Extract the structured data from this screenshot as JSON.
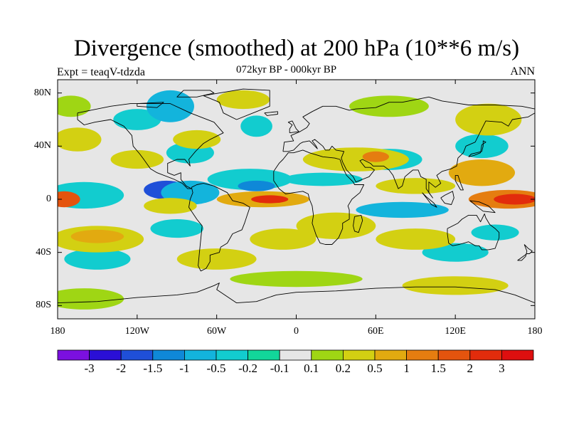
{
  "title": "Divergence (smoothed) at 200 hPa (10**6 m/s)",
  "left_label": "Expt = teaqV-tdzda",
  "center_label": "072kyr BP - 000kyr BP",
  "right_label": "ANN",
  "map": {
    "projection": "cylindrical-equidistant",
    "lon_range": [
      -180,
      180
    ],
    "lat_range": [
      -90,
      90
    ],
    "x_ticks": [
      "180",
      "120W",
      "60W",
      "0",
      "60E",
      "120E",
      "180"
    ],
    "y_ticks": [
      "80N",
      "40N",
      "0",
      "40S",
      "80S"
    ],
    "y_tick_values": [
      80,
      40,
      0,
      -40,
      -80
    ]
  },
  "colorbar": {
    "labels": [
      "-3",
      "-2",
      "-1.5",
      "-1",
      "-0.5",
      "-0.2",
      "-0.1",
      "0.1",
      "0.2",
      "0.5",
      "1",
      "1.5",
      "2",
      "3"
    ],
    "colors": [
      "#7b10e0",
      "#2a0fd6",
      "#1f4fd8",
      "#0f88d8",
      "#13b4dc",
      "#12cccf",
      "#12d69a",
      "#e6e6e6",
      "#9fd614",
      "#d3d012",
      "#e2aa10",
      "#e57d10",
      "#e4540e",
      "#e22c0c",
      "#de0f0f"
    ]
  },
  "features": [
    {
      "lon": -95,
      "lat": 7,
      "rx": 11,
      "ry": 4,
      "level": 0
    },
    {
      "lon": -98,
      "lat": 7,
      "rx": 17,
      "ry": 7,
      "level": 2
    },
    {
      "lon": -80,
      "lat": 5,
      "rx": 22,
      "ry": 9,
      "level": 4
    },
    {
      "lon": -160,
      "lat": 3,
      "rx": 30,
      "ry": 10,
      "level": 5
    },
    {
      "lon": -35,
      "lat": 15,
      "rx": 32,
      "ry": 8,
      "level": 5
    },
    {
      "lon": -30,
      "lat": 10,
      "rx": 14,
      "ry": 4,
      "level": 3
    },
    {
      "lon": 80,
      "lat": -8,
      "rx": 35,
      "ry": 6,
      "level": 4
    },
    {
      "lon": 20,
      "lat": 15,
      "rx": 30,
      "ry": 5,
      "level": 5
    },
    {
      "lon": -150,
      "lat": -45,
      "rx": 25,
      "ry": 8,
      "level": 5
    },
    {
      "lon": -80,
      "lat": 35,
      "rx": 18,
      "ry": 8,
      "level": 5
    },
    {
      "lon": -120,
      "lat": 60,
      "rx": 18,
      "ry": 8,
      "level": 5
    },
    {
      "lon": -95,
      "lat": 70,
      "rx": 18,
      "ry": 12,
      "level": 4
    },
    {
      "lon": -30,
      "lat": 55,
      "rx": 12,
      "ry": 8,
      "level": 5
    },
    {
      "lon": 70,
      "lat": 30,
      "rx": 25,
      "ry": 8,
      "level": 5
    },
    {
      "lon": -90,
      "lat": -22,
      "rx": 20,
      "ry": 7,
      "level": 5
    },
    {
      "lon": 140,
      "lat": 40,
      "rx": 20,
      "ry": 9,
      "level": 5
    },
    {
      "lon": 150,
      "lat": -25,
      "rx": 18,
      "ry": 6,
      "level": 5
    },
    {
      "lon": 120,
      "lat": -40,
      "rx": 25,
      "ry": 7,
      "level": 5
    },
    {
      "lon": -165,
      "lat": 45,
      "rx": 18,
      "ry": 9,
      "level": 9
    },
    {
      "lon": -150,
      "lat": -30,
      "rx": 35,
      "ry": 10,
      "level": 9
    },
    {
      "lon": -150,
      "lat": -28,
      "rx": 20,
      "ry": 5,
      "level": 10
    },
    {
      "lon": -120,
      "lat": 30,
      "rx": 20,
      "ry": 7,
      "level": 9
    },
    {
      "lon": -75,
      "lat": 45,
      "rx": 18,
      "ry": 7,
      "level": 9
    },
    {
      "lon": -95,
      "lat": -5,
      "rx": 20,
      "ry": 6,
      "level": 9
    },
    {
      "lon": -25,
      "lat": 0,
      "rx": 35,
      "ry": 6,
      "level": 10
    },
    {
      "lon": -20,
      "lat": 0,
      "rx": 14,
      "ry": 3,
      "level": 13
    },
    {
      "lon": -175,
      "lat": 0,
      "rx": 12,
      "ry": 6,
      "level": 12
    },
    {
      "lon": 160,
      "lat": 0,
      "rx": 30,
      "ry": 7,
      "level": 11
    },
    {
      "lon": 165,
      "lat": 0,
      "rx": 16,
      "ry": 4,
      "level": 13
    },
    {
      "lon": 45,
      "lat": 30,
      "rx": 40,
      "ry": 9,
      "level": 9
    },
    {
      "lon": 60,
      "lat": 32,
      "rx": 10,
      "ry": 4,
      "level": 11
    },
    {
      "lon": 90,
      "lat": 10,
      "rx": 30,
      "ry": 6,
      "level": 9
    },
    {
      "lon": 140,
      "lat": 20,
      "rx": 25,
      "ry": 10,
      "level": 10
    },
    {
      "lon": 145,
      "lat": 60,
      "rx": 25,
      "ry": 12,
      "level": 9
    },
    {
      "lon": 70,
      "lat": 70,
      "rx": 30,
      "ry": 8,
      "level": 8
    },
    {
      "lon": 30,
      "lat": -20,
      "rx": 30,
      "ry": 10,
      "level": 9
    },
    {
      "lon": -10,
      "lat": -30,
      "rx": 25,
      "ry": 8,
      "level": 9
    },
    {
      "lon": 90,
      "lat": -30,
      "rx": 30,
      "ry": 8,
      "level": 9
    },
    {
      "lon": -60,
      "lat": -45,
      "rx": 30,
      "ry": 8,
      "level": 9
    },
    {
      "lon": 0,
      "lat": -60,
      "rx": 50,
      "ry": 6,
      "level": 8
    },
    {
      "lon": 120,
      "lat": -65,
      "rx": 40,
      "ry": 7,
      "level": 9
    },
    {
      "lon": -160,
      "lat": -75,
      "rx": 30,
      "ry": 8,
      "level": 8
    },
    {
      "lon": -40,
      "lat": 75,
      "rx": 20,
      "ry": 7,
      "level": 9
    },
    {
      "lon": -170,
      "lat": 70,
      "rx": 15,
      "ry": 8,
      "level": 8
    }
  ],
  "coastlines": [
    [
      [
        -165,
        65
      ],
      [
        -140,
        70
      ],
      [
        -125,
        72
      ],
      [
        -95,
        72
      ],
      [
        -80,
        65
      ],
      [
        -62,
        58
      ],
      [
        -55,
        50
      ],
      [
        -65,
        45
      ],
      [
        -70,
        42
      ],
      [
        -76,
        36
      ],
      [
        -81,
        30
      ],
      [
        -80,
        25
      ],
      [
        -84,
        30
      ],
      [
        -90,
        30
      ],
      [
        -97,
        27
      ],
      [
        -97,
        20
      ],
      [
        -92,
        18
      ],
      [
        -87,
        20
      ],
      [
        -87,
        15
      ],
      [
        -83,
        10
      ],
      [
        -79,
        8
      ],
      [
        -82,
        8
      ],
      [
        -86,
        12
      ],
      [
        -92,
        15
      ],
      [
        -105,
        20
      ],
      [
        -110,
        23
      ],
      [
        -115,
        30
      ],
      [
        -118,
        34
      ],
      [
        -123,
        40
      ],
      [
        -124,
        48
      ],
      [
        -130,
        55
      ],
      [
        -140,
        60
      ],
      [
        -152,
        58
      ],
      [
        -160,
        56
      ],
      [
        -165,
        60
      ],
      [
        -165,
        65
      ]
    ],
    [
      [
        -79,
        9
      ],
      [
        -75,
        11
      ],
      [
        -70,
        12
      ],
      [
        -62,
        10
      ],
      [
        -52,
        5
      ],
      [
        -48,
        -1
      ],
      [
        -40,
        -3
      ],
      [
        -35,
        -6
      ],
      [
        -37,
        -12
      ],
      [
        -39,
        -18
      ],
      [
        -41,
        -23
      ],
      [
        -48,
        -26
      ],
      [
        -52,
        -33
      ],
      [
        -57,
        -36
      ],
      [
        -58,
        -40
      ],
      [
        -65,
        -42
      ],
      [
        -65,
        -47
      ],
      [
        -68,
        -52
      ],
      [
        -72,
        -54
      ],
      [
        -74,
        -50
      ],
      [
        -73,
        -40
      ],
      [
        -72,
        -30
      ],
      [
        -71,
        -20
      ],
      [
        -75,
        -15
      ],
      [
        -81,
        -6
      ],
      [
        -80,
        0
      ],
      [
        -78,
        5
      ],
      [
        -79,
        9
      ]
    ],
    [
      [
        -45,
        60
      ],
      [
        -55,
        65
      ],
      [
        -58,
        73
      ],
      [
        -70,
        78
      ],
      [
        -40,
        83
      ],
      [
        -20,
        82
      ],
      [
        -20,
        70
      ],
      [
        -30,
        66
      ],
      [
        -45,
        60
      ]
    ],
    [
      [
        -10,
        36
      ],
      [
        -9,
        43
      ],
      [
        -2,
        44
      ],
      [
        -4,
        48
      ],
      [
        3,
        51
      ],
      [
        8,
        54
      ],
      [
        10,
        57
      ],
      [
        5,
        62
      ],
      [
        12,
        66
      ],
      [
        20,
        70
      ],
      [
        30,
        70
      ],
      [
        40,
        67
      ],
      [
        45,
        68
      ],
      [
        60,
        69
      ],
      [
        70,
        73
      ],
      [
        80,
        73
      ],
      [
        100,
        77
      ],
      [
        110,
        74
      ],
      [
        130,
        71
      ],
      [
        150,
        71
      ],
      [
        170,
        70
      ],
      [
        180,
        68
      ],
      [
        180,
        65
      ],
      [
        175,
        62
      ],
      [
        163,
        60
      ],
      [
        160,
        55
      ],
      [
        155,
        58
      ],
      [
        143,
        59
      ],
      [
        140,
        53
      ],
      [
        135,
        43
      ],
      [
        128,
        40
      ],
      [
        126,
        35
      ],
      [
        122,
        31
      ],
      [
        121,
        25
      ],
      [
        117,
        23
      ],
      [
        110,
        21
      ],
      [
        106,
        18
      ],
      [
        109,
        12
      ],
      [
        105,
        9
      ],
      [
        100,
        13
      ],
      [
        100,
        5
      ],
      [
        103,
        1
      ],
      [
        98,
        8
      ],
      [
        98,
        15
      ],
      [
        94,
        17
      ],
      [
        92,
        22
      ],
      [
        88,
        22
      ],
      [
        82,
        17
      ],
      [
        80,
        10
      ],
      [
        77,
        8
      ],
      [
        73,
        18
      ],
      [
        70,
        22
      ],
      [
        66,
        25
      ],
      [
        58,
        25
      ],
      [
        56,
        27
      ],
      [
        50,
        30
      ],
      [
        48,
        29
      ],
      [
        52,
        24
      ],
      [
        56,
        24
      ],
      [
        59,
        22
      ],
      [
        55,
        17
      ],
      [
        45,
        13
      ],
      [
        43,
        17
      ],
      [
        38,
        22
      ],
      [
        35,
        28
      ],
      [
        34,
        31
      ],
      [
        36,
        36
      ],
      [
        30,
        37
      ],
      [
        27,
        40
      ],
      [
        25,
        37
      ],
      [
        22,
        37
      ],
      [
        20,
        40
      ],
      [
        14,
        45
      ],
      [
        12,
        44
      ],
      [
        15,
        40
      ],
      [
        16,
        38
      ],
      [
        12,
        42
      ],
      [
        10,
        44
      ],
      [
        5,
        43
      ],
      [
        3,
        42
      ],
      [
        0,
        39
      ],
      [
        -2,
        37
      ],
      [
        -6,
        36
      ],
      [
        -10,
        36
      ]
    ],
    [
      [
        -17,
        21
      ],
      [
        -17,
        14
      ],
      [
        -13,
        8
      ],
      [
        -8,
        4
      ],
      [
        -2,
        5
      ],
      [
        5,
        6
      ],
      [
        9,
        4
      ],
      [
        10,
        0
      ],
      [
        12,
        -5
      ],
      [
        13,
        -12
      ],
      [
        12,
        -18
      ],
      [
        15,
        -27
      ],
      [
        18,
        -33
      ],
      [
        22,
        -34
      ],
      [
        27,
        -34
      ],
      [
        32,
        -29
      ],
      [
        35,
        -22
      ],
      [
        35,
        -18
      ],
      [
        40,
        -15
      ],
      [
        40,
        -8
      ],
      [
        39,
        -5
      ],
      [
        42,
        0
      ],
      [
        48,
        5
      ],
      [
        51,
        11
      ],
      [
        44,
        11
      ],
      [
        43,
        13
      ],
      [
        38,
        18
      ],
      [
        35,
        24
      ],
      [
        33,
        30
      ],
      [
        29,
        31
      ],
      [
        20,
        32
      ],
      [
        10,
        35
      ],
      [
        5,
        37
      ],
      [
        -2,
        35
      ],
      [
        -6,
        35
      ],
      [
        -10,
        30
      ],
      [
        -13,
        27
      ],
      [
        -17,
        21
      ]
    ],
    [
      [
        114,
        -22
      ],
      [
        114,
        -26
      ],
      [
        115,
        -33
      ],
      [
        118,
        -35
      ],
      [
        123,
        -34
      ],
      [
        130,
        -32
      ],
      [
        135,
        -35
      ],
      [
        138,
        -35
      ],
      [
        140,
        -38
      ],
      [
        145,
        -38
      ],
      [
        150,
        -37
      ],
      [
        153,
        -29
      ],
      [
        153,
        -25
      ],
      [
        150,
        -22
      ],
      [
        146,
        -19
      ],
      [
        143,
        -14
      ],
      [
        142,
        -11
      ],
      [
        139,
        -17
      ],
      [
        136,
        -12
      ],
      [
        130,
        -12
      ],
      [
        125,
        -15
      ],
      [
        122,
        -18
      ],
      [
        114,
        -22
      ]
    ],
    [
      [
        -180,
        -78
      ],
      [
        -150,
        -77
      ],
      [
        -120,
        -74
      ],
      [
        -90,
        -72
      ],
      [
        -75,
        -70
      ],
      [
        -62,
        -65
      ],
      [
        -58,
        -63
      ],
      [
        -60,
        -68
      ],
      [
        -45,
        -78
      ],
      [
        -30,
        -77
      ],
      [
        -15,
        -72
      ],
      [
        0,
        -70
      ],
      [
        30,
        -69
      ],
      [
        60,
        -67
      ],
      [
        90,
        -66
      ],
      [
        120,
        -66
      ],
      [
        150,
        -68
      ],
      [
        165,
        -72
      ],
      [
        180,
        -78
      ]
    ],
    [
      [
        95,
        5
      ],
      [
        98,
        2
      ],
      [
        104,
        -3
      ],
      [
        106,
        -6
      ],
      [
        102,
        -4
      ],
      [
        99,
        0
      ],
      [
        95,
        5
      ]
    ],
    [
      [
        109,
        1
      ],
      [
        112,
        3
      ],
      [
        118,
        6
      ],
      [
        119,
        1
      ],
      [
        117,
        -4
      ],
      [
        112,
        -3
      ],
      [
        109,
        1
      ]
    ],
    [
      [
        131,
        -1
      ],
      [
        138,
        -2
      ],
      [
        145,
        -5
      ],
      [
        150,
        -10
      ],
      [
        141,
        -9
      ],
      [
        137,
        -6
      ],
      [
        131,
        -1
      ]
    ],
    [
      [
        130,
        32
      ],
      [
        132,
        34
      ],
      [
        136,
        35
      ],
      [
        140,
        36
      ],
      [
        141,
        40
      ],
      [
        141,
        44
      ],
      [
        143,
        43
      ],
      [
        140,
        41
      ],
      [
        139,
        35
      ],
      [
        134,
        33
      ],
      [
        130,
        32
      ]
    ],
    [
      [
        172,
        -34
      ],
      [
        175,
        -37
      ],
      [
        178,
        -39
      ],
      [
        176,
        -41
      ],
      [
        174,
        -41
      ],
      [
        167,
        -46
      ],
      [
        170,
        -46
      ],
      [
        173,
        -43
      ],
      [
        174,
        -39
      ],
      [
        172,
        -34
      ]
    ],
    [
      [
        -5,
        50
      ],
      [
        -5,
        53
      ],
      [
        -3,
        56
      ],
      [
        -6,
        58
      ],
      [
        -3,
        59
      ],
      [
        0,
        53
      ],
      [
        2,
        51
      ],
      [
        -5,
        50
      ]
    ],
    [
      [
        44,
        -13
      ],
      [
        49,
        -12
      ],
      [
        50,
        -16
      ],
      [
        47,
        -25
      ],
      [
        44,
        -24
      ],
      [
        43,
        -20
      ],
      [
        44,
        -13
      ]
    ],
    [
      [
        -85,
        82
      ],
      [
        -65,
        82
      ],
      [
        -62,
        80
      ],
      [
        -75,
        77
      ],
      [
        -90,
        77
      ],
      [
        -85,
        82
      ]
    ],
    [
      [
        -120,
        72
      ],
      [
        -100,
        73
      ],
      [
        -105,
        69
      ],
      [
        -120,
        70
      ],
      [
        -120,
        72
      ]
    ],
    [
      [
        120,
        18
      ],
      [
        122,
        18
      ],
      [
        124,
        12
      ],
      [
        126,
        7
      ],
      [
        124,
        7
      ],
      [
        120,
        14
      ],
      [
        120,
        18
      ]
    ],
    [
      [
        -24,
        65
      ],
      [
        -14,
        66
      ],
      [
        -14,
        64
      ],
      [
        -22,
        63
      ],
      [
        -24,
        65
      ]
    ]
  ]
}
